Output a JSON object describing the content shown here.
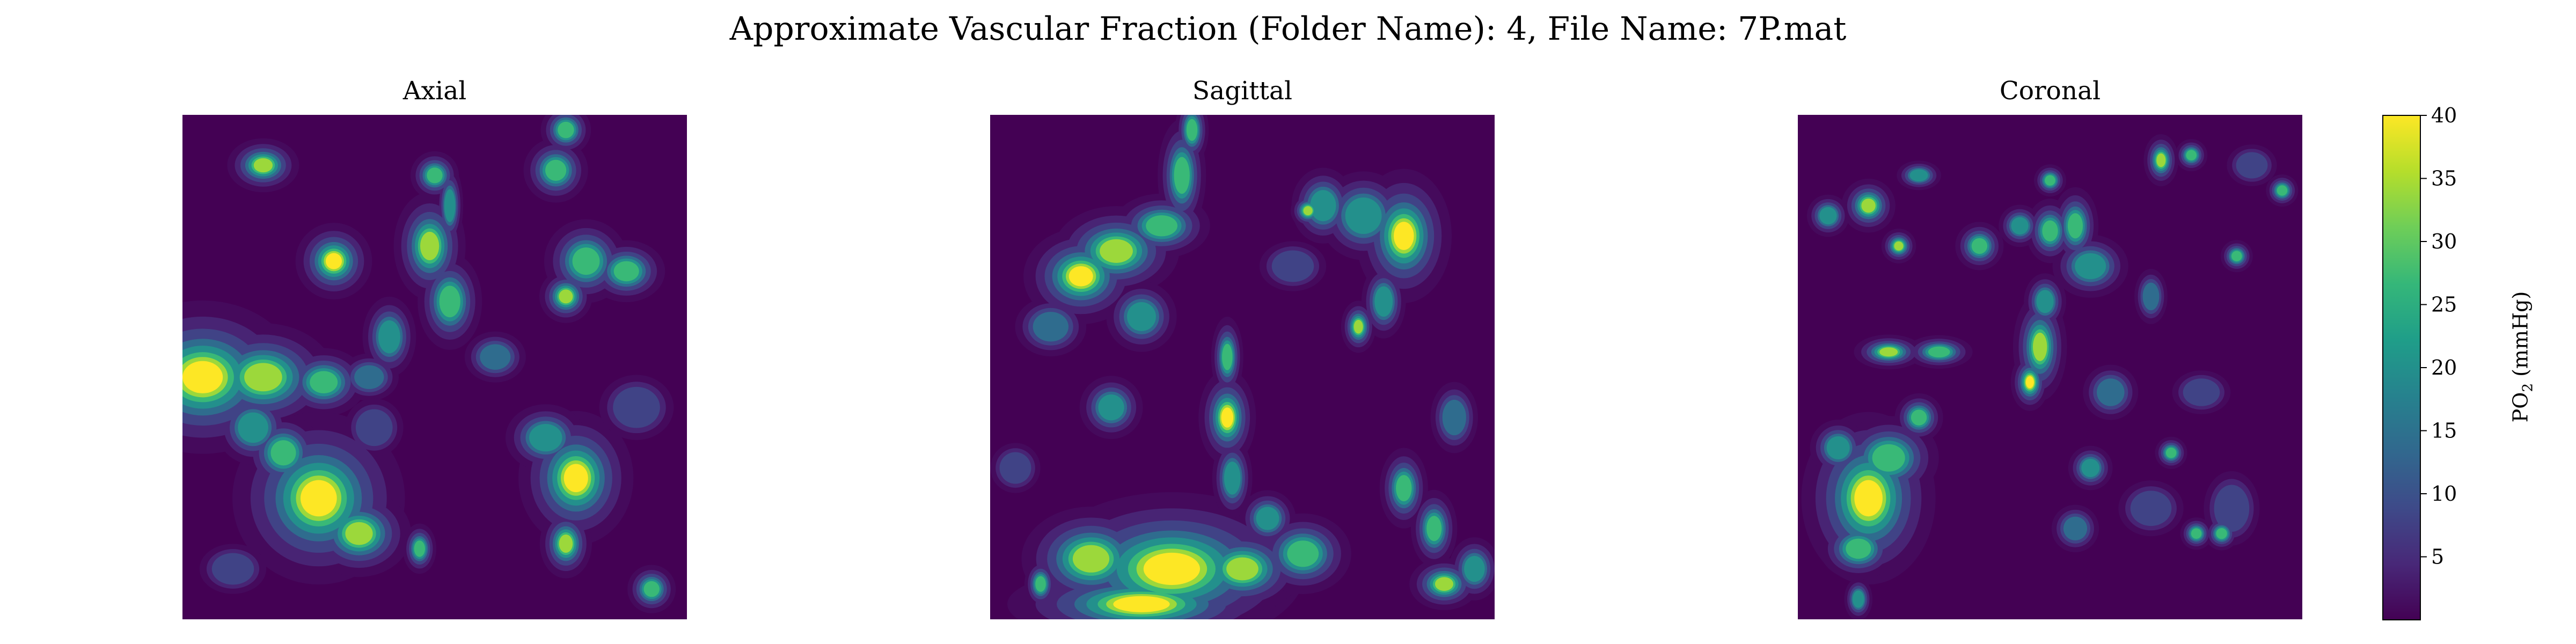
{
  "figure": {
    "title": "Approximate Vascular Fraction (Folder Name): 4, File Name: 7P.mat"
  },
  "chart_data": {
    "type": "heatmap",
    "colormap": "viridis",
    "colormap_stops": [
      "#440154",
      "#482878",
      "#3e4a89",
      "#31688e",
      "#26828e",
      "#1f9e89",
      "#35b779",
      "#6ece58",
      "#b5de2b",
      "#fde725"
    ],
    "value_range": [
      0,
      40
    ],
    "colorbar": {
      "label": "PO",
      "label_subscript": "2",
      "label_suffix": " (mmHg)",
      "ticks": [
        5,
        10,
        15,
        20,
        25,
        30,
        35,
        40
      ],
      "tick_labels": [
        "5",
        "10",
        "15",
        "20",
        "25",
        "30",
        "35",
        "40"
      ]
    },
    "panels": [
      {
        "title": "Axial",
        "blobs": [
          [
            0.04,
            0.52,
            0.1,
            0.08,
            40
          ],
          [
            0.16,
            0.52,
            0.08,
            0.06,
            36
          ],
          [
            0.28,
            0.53,
            0.05,
            0.04,
            33
          ],
          [
            0.27,
            0.76,
            0.09,
            0.09,
            40
          ],
          [
            0.35,
            0.83,
            0.06,
            0.05,
            34
          ],
          [
            0.2,
            0.67,
            0.05,
            0.05,
            28
          ],
          [
            0.14,
            0.62,
            0.05,
            0.05,
            26
          ],
          [
            0.3,
            0.29,
            0.04,
            0.04,
            40
          ],
          [
            0.16,
            0.1,
            0.04,
            0.03,
            36
          ],
          [
            0.49,
            0.26,
            0.04,
            0.06,
            36
          ],
          [
            0.53,
            0.37,
            0.04,
            0.06,
            30
          ],
          [
            0.5,
            0.12,
            0.03,
            0.03,
            30
          ],
          [
            0.41,
            0.44,
            0.04,
            0.06,
            22
          ],
          [
            0.37,
            0.52,
            0.05,
            0.04,
            18
          ],
          [
            0.53,
            0.18,
            0.02,
            0.06,
            22
          ],
          [
            0.62,
            0.48,
            0.06,
            0.05,
            14
          ],
          [
            0.8,
            0.29,
            0.05,
            0.05,
            32
          ],
          [
            0.88,
            0.31,
            0.05,
            0.04,
            28
          ],
          [
            0.76,
            0.36,
            0.03,
            0.03,
            35
          ],
          [
            0.78,
            0.72,
            0.06,
            0.07,
            40
          ],
          [
            0.76,
            0.85,
            0.03,
            0.04,
            34
          ],
          [
            0.72,
            0.64,
            0.06,
            0.05,
            22
          ],
          [
            0.74,
            0.11,
            0.04,
            0.04,
            30
          ],
          [
            0.76,
            0.03,
            0.03,
            0.03,
            32
          ],
          [
            0.47,
            0.86,
            0.02,
            0.03,
            32
          ],
          [
            0.93,
            0.94,
            0.03,
            0.03,
            30
          ],
          [
            0.9,
            0.58,
            0.08,
            0.07,
            12
          ],
          [
            0.1,
            0.9,
            0.08,
            0.06,
            10
          ],
          [
            0.38,
            0.62,
            0.08,
            0.08,
            8
          ]
        ]
      },
      {
        "title": "Sagittal",
        "blobs": [
          [
            0.18,
            0.32,
            0.06,
            0.05,
            40
          ],
          [
            0.25,
            0.27,
            0.07,
            0.05,
            36
          ],
          [
            0.34,
            0.22,
            0.06,
            0.04,
            30
          ],
          [
            0.3,
            0.4,
            0.05,
            0.05,
            24
          ],
          [
            0.38,
            0.12,
            0.03,
            0.07,
            30
          ],
          [
            0.4,
            0.03,
            0.02,
            0.04,
            32
          ],
          [
            0.12,
            0.42,
            0.06,
            0.05,
            18
          ],
          [
            0.24,
            0.58,
            0.05,
            0.05,
            20
          ],
          [
            0.36,
            0.9,
            0.14,
            0.08,
            40
          ],
          [
            0.2,
            0.88,
            0.08,
            0.06,
            34
          ],
          [
            0.3,
            0.97,
            0.14,
            0.04,
            40
          ],
          [
            0.5,
            0.9,
            0.07,
            0.05,
            34
          ],
          [
            0.62,
            0.87,
            0.06,
            0.05,
            30
          ],
          [
            0.47,
            0.6,
            0.03,
            0.05,
            40
          ],
          [
            0.47,
            0.48,
            0.02,
            0.05,
            30
          ],
          [
            0.48,
            0.72,
            0.03,
            0.06,
            22
          ],
          [
            0.55,
            0.8,
            0.04,
            0.04,
            24
          ],
          [
            0.82,
            0.24,
            0.05,
            0.07,
            40
          ],
          [
            0.74,
            0.2,
            0.06,
            0.06,
            26
          ],
          [
            0.66,
            0.18,
            0.05,
            0.06,
            20
          ],
          [
            0.78,
            0.37,
            0.03,
            0.05,
            26
          ],
          [
            0.73,
            0.42,
            0.02,
            0.03,
            34
          ],
          [
            0.63,
            0.19,
            0.02,
            0.02,
            34
          ],
          [
            0.82,
            0.74,
            0.03,
            0.05,
            30
          ],
          [
            0.88,
            0.82,
            0.03,
            0.05,
            28
          ],
          [
            0.9,
            0.93,
            0.04,
            0.03,
            34
          ],
          [
            0.96,
            0.9,
            0.04,
            0.05,
            20
          ],
          [
            0.1,
            0.93,
            0.02,
            0.03,
            30
          ],
          [
            0.92,
            0.6,
            0.04,
            0.06,
            18
          ],
          [
            0.6,
            0.3,
            0.08,
            0.06,
            10
          ],
          [
            0.05,
            0.7,
            0.06,
            0.06,
            10
          ]
        ]
      },
      {
        "title": "Coronal",
        "blobs": [
          [
            0.14,
            0.76,
            0.07,
            0.09,
            40
          ],
          [
            0.18,
            0.68,
            0.06,
            0.05,
            32
          ],
          [
            0.08,
            0.66,
            0.04,
            0.04,
            24
          ],
          [
            0.24,
            0.6,
            0.03,
            0.03,
            30
          ],
          [
            0.12,
            0.86,
            0.05,
            0.04,
            28
          ],
          [
            0.14,
            0.18,
            0.03,
            0.03,
            36
          ],
          [
            0.06,
            0.2,
            0.03,
            0.03,
            24
          ],
          [
            0.2,
            0.26,
            0.02,
            0.02,
            34
          ],
          [
            0.24,
            0.12,
            0.03,
            0.02,
            26
          ],
          [
            0.36,
            0.26,
            0.03,
            0.03,
            30
          ],
          [
            0.44,
            0.22,
            0.03,
            0.03,
            24
          ],
          [
            0.5,
            0.13,
            0.02,
            0.02,
            30
          ],
          [
            0.5,
            0.23,
            0.03,
            0.04,
            30
          ],
          [
            0.55,
            0.22,
            0.03,
            0.05,
            28
          ],
          [
            0.49,
            0.37,
            0.03,
            0.04,
            24
          ],
          [
            0.48,
            0.46,
            0.03,
            0.06,
            36
          ],
          [
            0.46,
            0.53,
            0.02,
            0.03,
            40
          ],
          [
            0.18,
            0.47,
            0.04,
            0.02,
            34
          ],
          [
            0.28,
            0.47,
            0.04,
            0.02,
            32
          ],
          [
            0.62,
            0.55,
            0.05,
            0.05,
            16
          ],
          [
            0.58,
            0.3,
            0.06,
            0.05,
            20
          ],
          [
            0.72,
            0.09,
            0.02,
            0.03,
            34
          ],
          [
            0.78,
            0.08,
            0.02,
            0.02,
            30
          ],
          [
            0.87,
            0.28,
            0.02,
            0.02,
            30
          ],
          [
            0.7,
            0.36,
            0.03,
            0.05,
            16
          ],
          [
            0.96,
            0.15,
            0.02,
            0.02,
            30
          ],
          [
            0.74,
            0.67,
            0.02,
            0.02,
            30
          ],
          [
            0.84,
            0.83,
            0.02,
            0.02,
            32
          ],
          [
            0.79,
            0.83,
            0.02,
            0.02,
            30
          ],
          [
            0.58,
            0.7,
            0.03,
            0.03,
            26
          ],
          [
            0.55,
            0.82,
            0.04,
            0.04,
            18
          ],
          [
            0.7,
            0.78,
            0.07,
            0.06,
            12
          ],
          [
            0.86,
            0.78,
            0.06,
            0.08,
            12
          ],
          [
            0.12,
            0.96,
            0.02,
            0.03,
            24
          ],
          [
            0.8,
            0.55,
            0.08,
            0.06,
            8
          ],
          [
            0.9,
            0.1,
            0.06,
            0.05,
            10
          ]
        ]
      }
    ]
  }
}
